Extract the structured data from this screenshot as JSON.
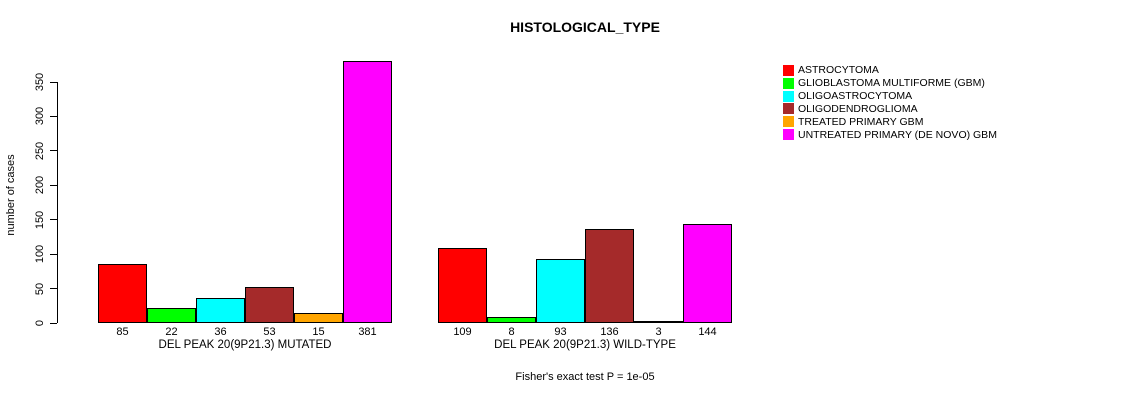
{
  "page": {
    "background_color": "#ffffff",
    "text_color": "#000000"
  },
  "chart_data": {
    "type": "bar",
    "title": "HISTOLOGICAL_TYPE",
    "ylabel": "number of cases",
    "xlabel": "",
    "subtitle": "Fisher's exact test P = 1e-05",
    "ylim": [
      0,
      350
    ],
    "yticks": [
      0,
      50,
      100,
      150,
      200,
      250,
      300,
      350
    ],
    "grid": false,
    "legend_position": "right",
    "bar_border_color": "#000000",
    "show_value_labels": true,
    "categories": [
      "DEL PEAK 20(9P21.3) MUTATED",
      "DEL PEAK 20(9P21.3) WILD-TYPE"
    ],
    "series": [
      {
        "name": "ASTROCYTOMA",
        "color": "#FF0000",
        "values": [
          85,
          109
        ]
      },
      {
        "name": "GLIOBLASTOMA MULTIFORME (GBM)",
        "color": "#00FF00",
        "values": [
          22,
          8
        ]
      },
      {
        "name": "OLIGOASTROCYTOMA",
        "color": "#00FFFF",
        "values": [
          36,
          93
        ]
      },
      {
        "name": "OLIGODENDROGLIOMA",
        "color": "#A52A2A",
        "values": [
          53,
          136
        ]
      },
      {
        "name": "TREATED PRIMARY GBM",
        "color": "#FFA500",
        "values": [
          15,
          3
        ]
      },
      {
        "name": "UNTREATED PRIMARY (DE NOVO) GBM",
        "color": "#FF00FF",
        "values": [
          381,
          144
        ]
      }
    ]
  }
}
